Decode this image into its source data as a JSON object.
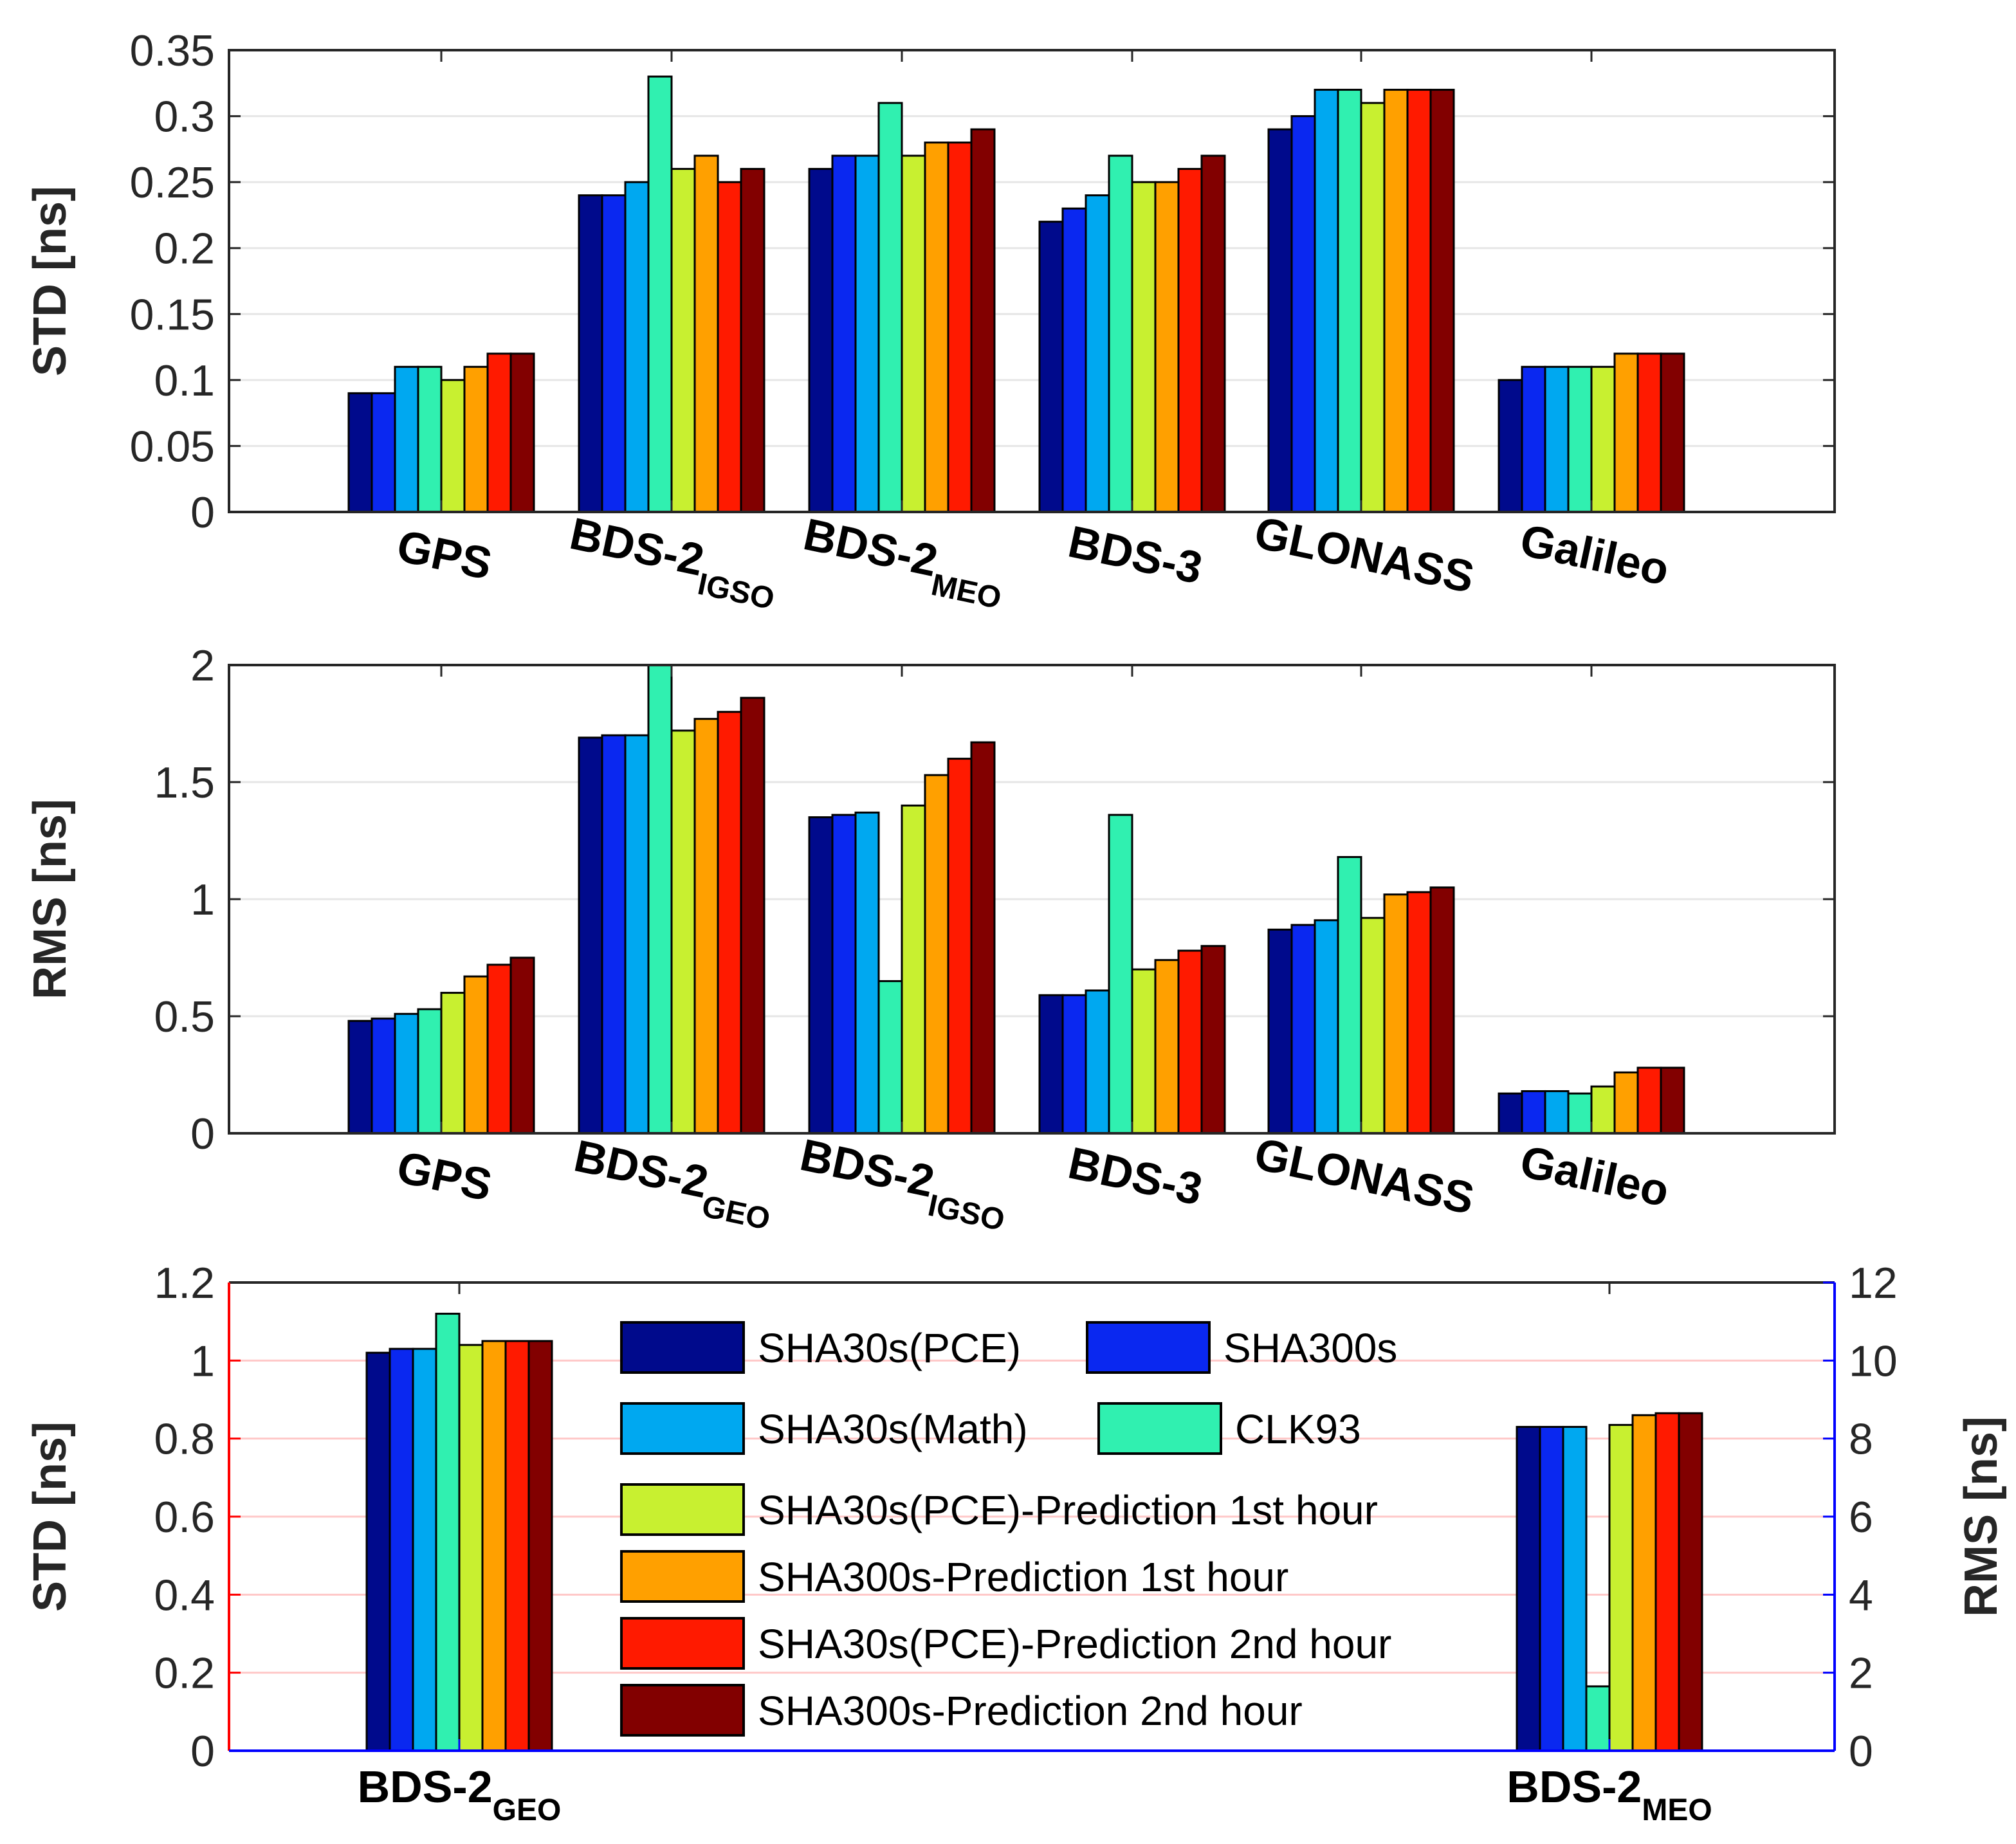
{
  "colors": {
    "series": [
      "#000a8c",
      "#0a28f0",
      "#00a8f0",
      "#30f0b0",
      "#c8f030",
      "#ffa000",
      "#ff1a00",
      "#820000"
    ],
    "grid": "#e6e6e6",
    "axis": "#262626",
    "left_axis_bottom": "#ff0000",
    "right_axis_bottom": "#0000ff",
    "grid_bottom": "#ffc8c8"
  },
  "legend": {
    "entries": [
      "SHA30s(PCE)",
      "SHA300s",
      "SHA30s(Math)",
      "CLK93",
      "SHA30s(PCE)-Prediction 1st hour",
      "SHA300s-Prediction 1st hour",
      "SHA30s(PCE)-Prediction 2nd hour",
      "SHA300s-Prediction 2nd hour"
    ]
  },
  "chart_data": [
    {
      "type": "bar",
      "ylabel": "STD [ns]",
      "ylim": [
        0,
        0.35
      ],
      "yticks": [
        "0",
        "0.05",
        "0.1",
        "0.15",
        "0.2",
        "0.25",
        "0.3",
        "0.35"
      ],
      "grid": "horizontal",
      "categories": [
        {
          "main": "GPS",
          "sub": ""
        },
        {
          "main": "BDS-2",
          "sub": "IGSO"
        },
        {
          "main": "BDS-2",
          "sub": "MEO"
        },
        {
          "main": "BDS-3",
          "sub": ""
        },
        {
          "main": "GLONASS",
          "sub": ""
        },
        {
          "main": "Galileo",
          "sub": ""
        }
      ],
      "series": [
        {
          "name": "SHA30s(PCE)",
          "values": [
            0.09,
            0.24,
            0.26,
            0.22,
            0.29,
            0.1
          ]
        },
        {
          "name": "SHA300s",
          "values": [
            0.09,
            0.24,
            0.27,
            0.23,
            0.3,
            0.11
          ]
        },
        {
          "name": "SHA30s(Math)",
          "values": [
            0.11,
            0.25,
            0.27,
            0.24,
            0.32,
            0.11
          ]
        },
        {
          "name": "CLK93",
          "values": [
            0.11,
            0.33,
            0.31,
            0.27,
            0.32,
            0.11
          ]
        },
        {
          "name": "SHA30s(PCE)-Prediction 1st hour",
          "values": [
            0.1,
            0.26,
            0.27,
            0.25,
            0.31,
            0.11
          ]
        },
        {
          "name": "SHA300s-Prediction 1st hour",
          "values": [
            0.11,
            0.27,
            0.28,
            0.25,
            0.32,
            0.12
          ]
        },
        {
          "name": "SHA30s(PCE)-Prediction 2nd hour",
          "values": [
            0.12,
            0.25,
            0.28,
            0.26,
            0.32,
            0.12
          ]
        },
        {
          "name": "SHA300s-Prediction 2nd hour",
          "values": [
            0.12,
            0.26,
            0.29,
            0.27,
            0.32,
            0.12
          ]
        }
      ]
    },
    {
      "type": "bar",
      "ylabel": "RMS [ns]",
      "ylim": [
        0,
        2
      ],
      "yticks": [
        "0",
        "0.5",
        "1",
        "1.5",
        "2"
      ],
      "grid": "horizontal",
      "categories": [
        {
          "main": "GPS",
          "sub": ""
        },
        {
          "main": "BDS-2",
          "sub": "GEO"
        },
        {
          "main": "BDS-2",
          "sub": "IGSO"
        },
        {
          "main": "BDS-3",
          "sub": ""
        },
        {
          "main": "GLONASS",
          "sub": ""
        },
        {
          "main": "Galileo",
          "sub": ""
        }
      ],
      "series": [
        {
          "name": "SHA30s(PCE)",
          "values": [
            0.48,
            1.69,
            1.35,
            0.59,
            0.87,
            0.17
          ]
        },
        {
          "name": "SHA300s",
          "values": [
            0.49,
            1.7,
            1.36,
            0.59,
            0.89,
            0.18
          ]
        },
        {
          "name": "SHA30s(Math)",
          "values": [
            0.51,
            1.7,
            1.37,
            0.61,
            0.91,
            0.18
          ]
        },
        {
          "name": "CLK93",
          "values": [
            0.53,
            2.0,
            0.65,
            1.36,
            1.18,
            0.17
          ]
        },
        {
          "name": "SHA30s(PCE)-Prediction 1st hour",
          "values": [
            0.6,
            1.72,
            1.4,
            0.7,
            0.92,
            0.2
          ]
        },
        {
          "name": "SHA300s-Prediction 1st hour",
          "values": [
            0.67,
            1.77,
            1.53,
            0.74,
            1.02,
            0.26
          ]
        },
        {
          "name": "SHA30s(PCE)-Prediction 2nd hour",
          "values": [
            0.72,
            1.8,
            1.6,
            0.78,
            1.03,
            0.28
          ]
        },
        {
          "name": "SHA300s-Prediction 2nd hour",
          "values": [
            0.75,
            1.86,
            1.67,
            0.8,
            1.05,
            0.28
          ]
        }
      ]
    },
    {
      "type": "bar",
      "ylabel": "STD [ns]",
      "ylim": [
        0,
        1.2
      ],
      "yticks": [
        "0",
        "0.2",
        "0.4",
        "0.6",
        "0.8",
        "1",
        "1.2"
      ],
      "y2label": "RMS [ns]",
      "y2lim": [
        0,
        12
      ],
      "y2ticks": [
        "0",
        "2",
        "4",
        "6",
        "8",
        "10",
        "12"
      ],
      "grid": "horizontal",
      "legend_position": "center",
      "categories": [
        {
          "main": "BDS-2",
          "sub": "GEO",
          "axis": "left"
        },
        {
          "main": "BDS-2",
          "sub": "MEO",
          "axis": "right"
        }
      ],
      "series": [
        {
          "name": "SHA30s(PCE)",
          "values": [
            1.02,
            8.3
          ]
        },
        {
          "name": "SHA300s",
          "values": [
            1.03,
            8.3
          ]
        },
        {
          "name": "SHA30s(Math)",
          "values": [
            1.03,
            8.3
          ]
        },
        {
          "name": "CLK93",
          "values": [
            1.12,
            1.65
          ]
        },
        {
          "name": "SHA30s(PCE)-Prediction 1st hour",
          "values": [
            1.04,
            8.35
          ]
        },
        {
          "name": "SHA300s-Prediction 1st hour",
          "values": [
            1.05,
            8.6
          ]
        },
        {
          "name": "SHA30s(PCE)-Prediction 2nd hour",
          "values": [
            1.05,
            8.65
          ]
        },
        {
          "name": "SHA300s-Prediction 2nd hour",
          "values": [
            1.05,
            8.65
          ]
        }
      ]
    }
  ]
}
